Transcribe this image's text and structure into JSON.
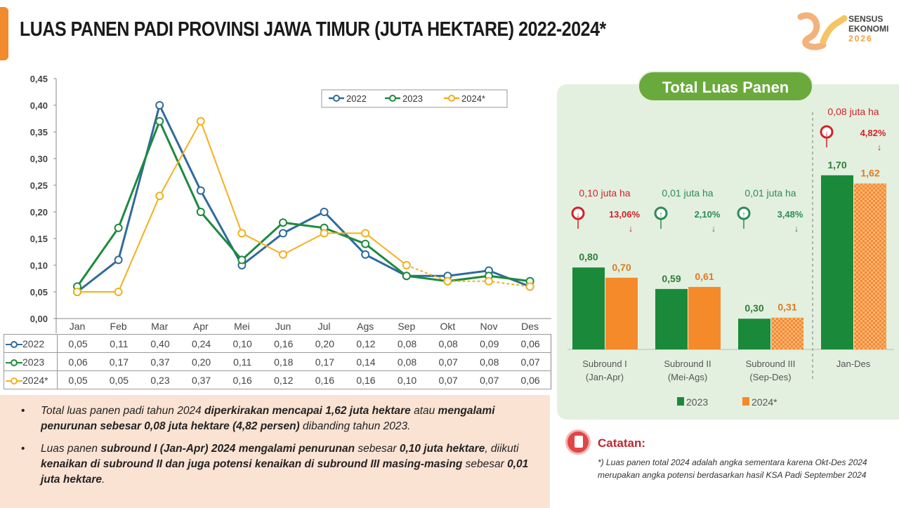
{
  "title": "LUAS PANEN PADI PROVINSI JAWA TIMUR (JUTA HEKTARE) 2022-2024*",
  "logo": {
    "line1": "SENSUS",
    "line2": "EKONOMI",
    "line3": "2026"
  },
  "colors": {
    "s2022": "#2f6b9a",
    "s2023": "#1e8a3e",
    "s2024": "#f2b01e",
    "bar2023": "#1a8a3a",
    "bar2024": "#f58a2a",
    "accent": "#f28a2e",
    "panel": "#e3f0df",
    "pill": "#6aaa3c",
    "decrease": "#d0232b",
    "increase": "#2e8b57"
  },
  "chart_data": [
    {
      "type": "line",
      "title": "",
      "categories": [
        "Jan",
        "Feb",
        "Mar",
        "Apr",
        "Mei",
        "Jun",
        "Jul",
        "Ags",
        "Sep",
        "Okt",
        "Nov",
        "Des"
      ],
      "yticks": [
        "0,00",
        "0,05",
        "0,10",
        "0,15",
        "0,20",
        "0,25",
        "0,30",
        "0,35",
        "0,40",
        "0,45"
      ],
      "ylim": [
        0,
        0.45
      ],
      "grid": false,
      "legend": "top-right",
      "series": [
        {
          "name": "2022",
          "values": [
            0.05,
            0.11,
            0.4,
            0.24,
            0.1,
            0.16,
            0.2,
            0.12,
            0.08,
            0.08,
            0.09,
            0.06
          ],
          "labels": [
            "0,05",
            "0,11",
            "0,40",
            "0,24",
            "0,10",
            "0,16",
            "0,20",
            "0,12",
            "0,08",
            "0,08",
            "0,09",
            "0,06"
          ]
        },
        {
          "name": "2023",
          "values": [
            0.06,
            0.17,
            0.37,
            0.2,
            0.11,
            0.18,
            0.17,
            0.14,
            0.08,
            0.07,
            0.08,
            0.07
          ],
          "labels": [
            "0,06",
            "0,17",
            "0,37",
            "0,20",
            "0,11",
            "0,18",
            "0,17",
            "0,14",
            "0,08",
            "0,07",
            "0,08",
            "0,07"
          ]
        },
        {
          "name": "2024*",
          "values": [
            0.05,
            0.05,
            0.23,
            0.37,
            0.16,
            0.12,
            0.16,
            0.16,
            0.1,
            0.07,
            0.07,
            0.06
          ],
          "labels": [
            "0,05",
            "0,05",
            "0,23",
            "0,37",
            "0,16",
            "0,12",
            "0,16",
            "0,16",
            "0,10",
            "0,07",
            "0,07",
            "0,06"
          ],
          "dashed_from": "Sep"
        }
      ]
    },
    {
      "type": "bar",
      "title": "Total Luas Panen",
      "categories": [
        [
          "Subround I",
          "(Jan-Apr)"
        ],
        [
          "Subround II",
          "(Mei-Ags)"
        ],
        [
          "Subround III",
          "(Sep-Des)"
        ],
        [
          "Jan-Des"
        ]
      ],
      "legend": "bottom",
      "series": [
        {
          "name": "2023",
          "values": [
            0.8,
            0.59,
            0.3,
            1.7
          ],
          "labels": [
            "0,80",
            "0,59",
            "0,30",
            "1,70"
          ]
        },
        {
          "name": "2024*",
          "values": [
            0.7,
            0.61,
            0.31,
            1.62
          ],
          "labels": [
            "0,70",
            "0,61",
            "0,31",
            "1,62"
          ]
        }
      ],
      "annotations": [
        {
          "change": "0,10 juta ha",
          "percent": "13,06%",
          "direction": "down"
        },
        {
          "change": "0,01 juta ha",
          "percent": "2,10%",
          "direction": "up"
        },
        {
          "change": "0,01 juta ha",
          "percent": "3,48%",
          "direction": "up"
        },
        {
          "change": "0,08 juta ha",
          "percent": "4,82%",
          "direction": "down"
        }
      ]
    }
  ],
  "notes": [
    [
      {
        "t": "Total luas panen padi tahun 2024 ",
        "b": false
      },
      {
        "t": "diperkirakan mencapai 1,62 juta hektare",
        "b": true
      },
      {
        "t": " atau ",
        "b": false
      },
      {
        "t": "mengalami penurunan sebesar 0,08 juta hektare (4,82 persen)",
        "b": true
      },
      {
        "t": " dibanding tahun 2023.",
        "b": false
      }
    ],
    [
      {
        "t": "Luas panen ",
        "b": false
      },
      {
        "t": "subround I (Jan-Apr) 2024 mengalami penurunan",
        "b": true
      },
      {
        "t": " sebesar ",
        "b": false
      },
      {
        "t": "0,10 juta hektare",
        "b": true
      },
      {
        "t": ", diikuti ",
        "b": false
      },
      {
        "t": "kenaikan di subround II dan juga potensi kenaikan di subround III masing-masing",
        "b": true
      },
      {
        "t": " sebesar ",
        "b": false
      },
      {
        "t": "0,01 juta hektare",
        "b": true
      },
      {
        "t": ".",
        "b": false
      }
    ]
  ],
  "catatan": {
    "title": "Catatan:",
    "text": "*) Luas panen total 2024 adalah angka sementara karena Okt-Des 2024 merupakan angka potensi berdasarkan hasil KSA Padi September 2024"
  }
}
